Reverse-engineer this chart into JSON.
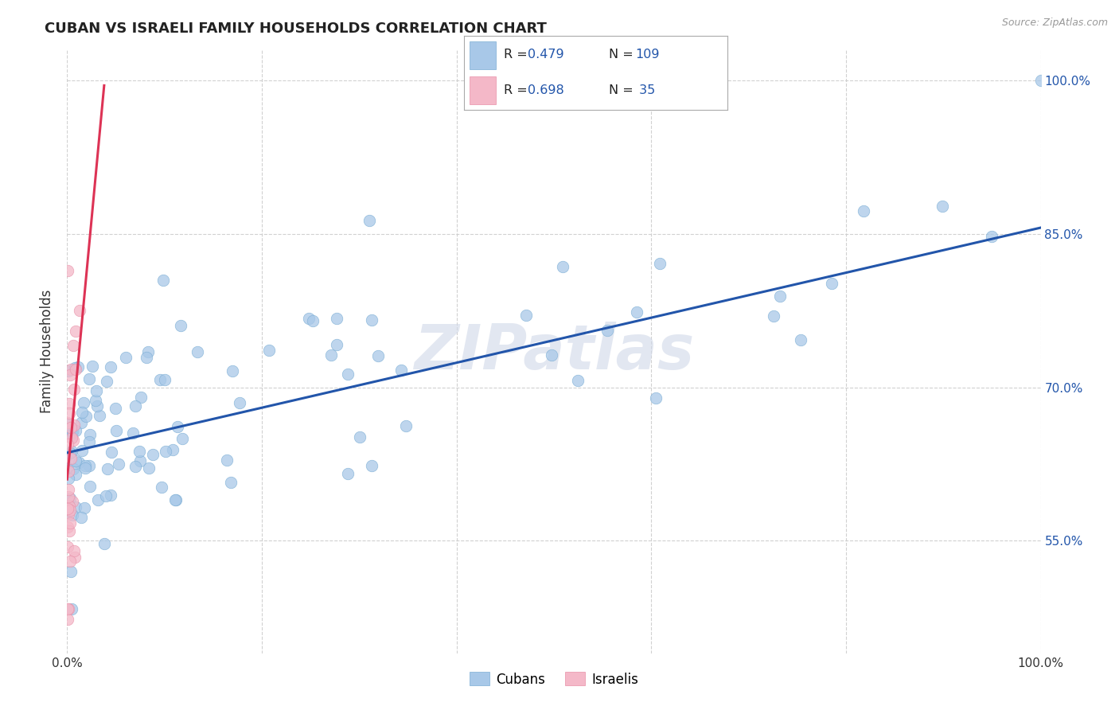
{
  "title": "CUBAN VS ISRAELI FAMILY HOUSEHOLDS CORRELATION CHART",
  "source": "Source: ZipAtlas.com",
  "ylabel": "Family Households",
  "legend_label_blue": "Cubans",
  "legend_label_pink": "Israelis",
  "blue_color": "#a8c8e8",
  "pink_color": "#f4b8c8",
  "blue_edge_color": "#7aadd4",
  "pink_edge_color": "#e890a8",
  "blue_line_color": "#2255aa",
  "pink_line_color": "#dd3355",
  "text_color": "#2255aa",
  "watermark_color": "#d0d8e8",
  "grid_color": "#cccccc",
  "background_color": "#ffffff",
  "right_tick_color": "#2255aa",
  "xlim": [
    0.0,
    1.0
  ],
  "ylim": [
    0.44,
    1.03
  ],
  "yticks": [
    0.55,
    0.7,
    0.85,
    1.0
  ],
  "yticklabels": [
    "55.0%",
    "70.0%",
    "85.0%",
    "100.0%"
  ],
  "xtick_left_label": "0.0%",
  "xtick_right_label": "100.0%",
  "legend_R_blue": "0.479",
  "legend_N_blue": "109",
  "legend_R_pink": "0.698",
  "legend_N_pink": " 35",
  "blue_line_x": [
    0.0,
    1.0
  ],
  "blue_line_y": [
    0.636,
    0.856
  ],
  "pink_line_x": [
    0.0,
    0.038
  ],
  "pink_line_y": [
    0.61,
    0.995
  ]
}
